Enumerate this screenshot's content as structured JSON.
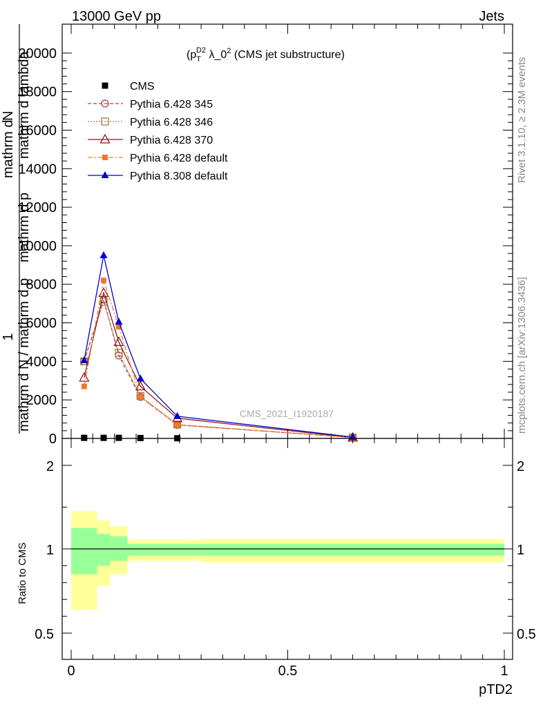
{
  "header": {
    "left": "13000 GeV pp",
    "right": "Jets"
  },
  "side_labels": {
    "rivet": "Rivet 3.1.10, ≥ 2.3M events",
    "mcplots": "mcplots.cern.ch [arXiv:1306.3436]"
  },
  "watermark": "CMS_2021_I1920187",
  "main_title": {
    "part1": "(p",
    "sup": "D",
    "sub": "T",
    "sup2": "2",
    "part2": " λ_0",
    "sup3": "2",
    "part3": " (CMS jet substructure)"
  },
  "yaxis_label": {
    "line1": "1",
    "line2": "mathrm d N / mathrm d p",
    "line3": "mathrm d",
    "sub": "T",
    "top1": "mathrm d",
    "top2": "N",
    "top3": "mathrm d p",
    "top4": "mathrm d lambda",
    "sub2": "T"
  },
  "ratio_label": "Ratio to CMS",
  "xaxis_label": "pTD2",
  "colors": {
    "cms": "#000000",
    "p345": "#b03a48",
    "p346": "#a08040",
    "p370": "#8b1a1a",
    "p6def": "#f07830",
    "p8def": "#0000cc",
    "band_inner": "#99ff99",
    "band_outer": "#ffff99"
  },
  "chart_data": [
    {
      "type": "line",
      "x": [
        0.03,
        0.075,
        0.11,
        0.16,
        0.245,
        0.65
      ],
      "ylim": [
        0,
        21500
      ],
      "xlim": [
        -0.02,
        1.0
      ],
      "yticks": [
        0,
        2000,
        4000,
        6000,
        8000,
        10000,
        12000,
        14000,
        16000,
        18000,
        20000
      ],
      "ytick_labels": [
        "0",
        "2000",
        "4000",
        "6000",
        "8000",
        "10000",
        "12000",
        "14000",
        "16000",
        "18000",
        "20000"
      ],
      "legend_position": "top-left",
      "series": [
        {
          "name": "CMS",
          "marker": "square",
          "values": [
            30,
            30,
            30,
            20,
            10,
            0
          ]
        },
        {
          "name": "Pythia 6.428 345",
          "marker": "open-circle",
          "dash": "5,3",
          "values": [
            4000,
            7200,
            4300,
            2150,
            700,
            50
          ]
        },
        {
          "name": "Pythia 6.428 346",
          "marker": "open-square",
          "dash": "2,2",
          "values": [
            4000,
            7100,
            4450,
            2200,
            720,
            50
          ]
        },
        {
          "name": "Pythia 6.428 370",
          "marker": "open-triangle",
          "dash": "",
          "values": [
            3150,
            7550,
            5000,
            2700,
            1050,
            40
          ]
        },
        {
          "name": "Pythia 6.428 default",
          "marker": "square-small",
          "dash": "7,3,2,3",
          "values": [
            2700,
            8200,
            5800,
            2150,
            700,
            50
          ]
        },
        {
          "name": "Pythia 8.308 default",
          "marker": "filled-triangle",
          "dash": "",
          "values": [
            4050,
            9500,
            6050,
            3100,
            1150,
            70
          ]
        }
      ]
    },
    {
      "type": "area",
      "name": "Ratio to CMS",
      "ylim": [
        0.4,
        2.25
      ],
      "yticks": [
        0.5,
        1,
        2
      ],
      "ytick_labels": [
        "0.5",
        "1",
        "2"
      ],
      "xticks": [
        0,
        0.5,
        1
      ],
      "xtick_labels": [
        "0",
        "0.5",
        "1"
      ],
      "bin_edges": [
        0,
        0.06,
        0.09,
        0.13,
        0.3,
        1.0
      ],
      "outer_low": [
        0.64,
        0.78,
        0.85,
        0.93,
        0.92
      ],
      "outer_high": [
        1.45,
        1.34,
        1.27,
        1.11,
        1.12
      ],
      "inner_low": [
        0.85,
        0.9,
        0.93,
        0.96,
        0.96
      ],
      "inner_high": [
        1.25,
        1.18,
        1.15,
        1.06,
        1.06
      ]
    }
  ]
}
